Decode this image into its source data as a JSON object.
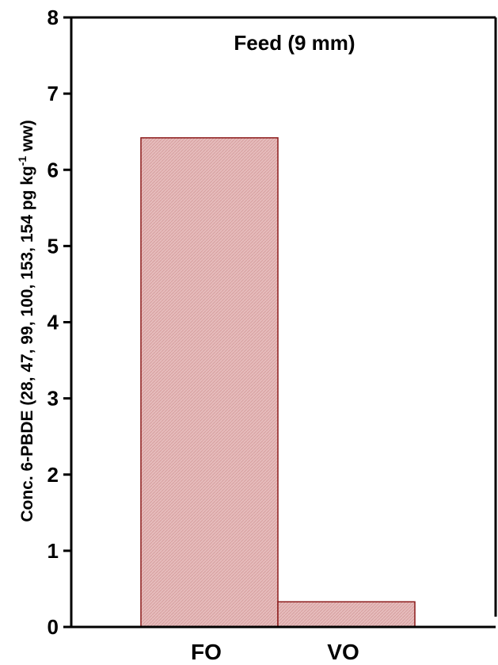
{
  "chart_data": {
    "type": "bar",
    "title": "Feed (9 mm)",
    "categories": [
      "FO",
      "VO"
    ],
    "values": [
      6.42,
      0.33
    ],
    "ylabel": {
      "main": "Conc. 6-PBDE (28, 47, 99, 100, 153, 154 pg kg",
      "superscript": "-1",
      "tail": " ww)"
    },
    "xlabel": "",
    "ylim": [
      0,
      8
    ],
    "yticks": [
      "0",
      "1",
      "2",
      "3",
      "4",
      "5",
      "6",
      "7",
      "8"
    ],
    "grid": false,
    "legend": "none",
    "colors": {
      "bar_fill": "#e6bcbc",
      "bar_edge": "#8b1a1a",
      "axis": "#000000"
    }
  }
}
